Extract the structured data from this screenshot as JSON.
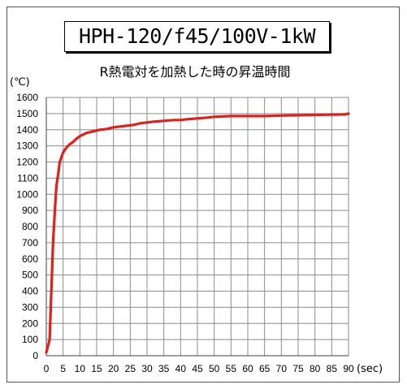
{
  "chart_data": {
    "type": "line",
    "heading": "HPH-120/f45/100V-1kW",
    "title": "R熱電対を加熱した時の昇温時間",
    "xlabel": "(sec)",
    "ylabel": "(℃)",
    "xlim": [
      0,
      90
    ],
    "ylim": [
      0,
      1600
    ],
    "xticks": [
      "0",
      "5",
      "10",
      "15",
      "20",
      "25",
      "30",
      "35",
      "40",
      "45",
      "50",
      "55",
      "60",
      "65",
      "70",
      "75",
      "80",
      "85",
      "90"
    ],
    "yticks": [
      "0",
      "100",
      "200",
      "300",
      "400",
      "500",
      "600",
      "700",
      "800",
      "900",
      "1000",
      "1100",
      "1200",
      "1300",
      "1400",
      "1500",
      "1600"
    ],
    "grid": true,
    "series_color": "#e0201a",
    "series": [
      {
        "x": [
          0,
          1,
          1.5,
          2,
          2.5,
          3,
          3.5,
          4,
          5,
          6,
          7,
          8,
          9,
          10,
          12,
          14,
          16,
          18,
          20,
          22,
          24,
          26,
          28,
          30,
          32,
          35,
          38,
          40,
          42,
          45,
          48,
          50,
          55,
          60,
          65,
          70,
          75,
          80,
          85,
          89,
          90
        ],
        "y": [
          20,
          100,
          400,
          700,
          880,
          1050,
          1120,
          1200,
          1260,
          1290,
          1310,
          1325,
          1345,
          1360,
          1380,
          1390,
          1400,
          1405,
          1415,
          1420,
          1425,
          1430,
          1440,
          1445,
          1450,
          1455,
          1460,
          1460,
          1465,
          1470,
          1475,
          1480,
          1485,
          1485,
          1485,
          1488,
          1490,
          1492,
          1494,
          1495,
          1500
        ]
      }
    ]
  }
}
